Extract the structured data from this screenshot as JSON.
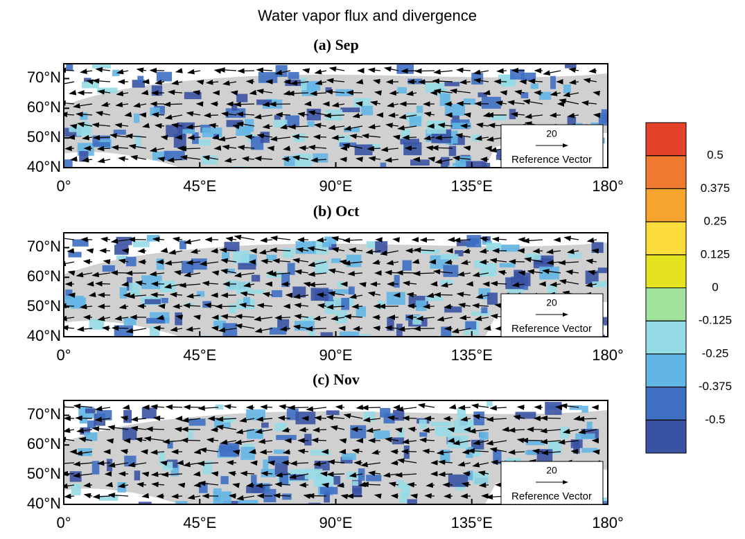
{
  "title": "Water vapor flux and divergence",
  "xlim": [
    0,
    180
  ],
  "ylim": [
    40,
    75
  ],
  "xticks": [
    {
      "value": 0,
      "label": "0°"
    },
    {
      "value": 45,
      "label": "45°E"
    },
    {
      "value": 90,
      "label": "90°E"
    },
    {
      "value": 135,
      "label": "135°E"
    },
    {
      "value": 180,
      "label": "180°"
    }
  ],
  "yticks": [
    {
      "value": 40,
      "label": "40°N"
    },
    {
      "value": 50,
      "label": "50°N"
    },
    {
      "value": 60,
      "label": "60°N"
    },
    {
      "value": 70,
      "label": "70°N"
    }
  ],
  "reference_vector": {
    "value": 20,
    "label": "Reference Vector"
  },
  "panels": [
    {
      "title": "(a) Sep"
    },
    {
      "title": "(b) Oct"
    },
    {
      "title": "(c) Nov"
    }
  ],
  "colorbar": {
    "levels": [
      -0.5,
      -0.375,
      -0.25,
      -0.125,
      0,
      0.125,
      0.25,
      0.375,
      0.5
    ],
    "colors": [
      "#3a52a3",
      "#3e6fc2",
      "#62b6e4",
      "#96dce6",
      "#a2e39c",
      "#e5e21f",
      "#fbdc3a",
      "#f6a42d",
      "#f07a2f",
      "#e4422a"
    ]
  }
}
